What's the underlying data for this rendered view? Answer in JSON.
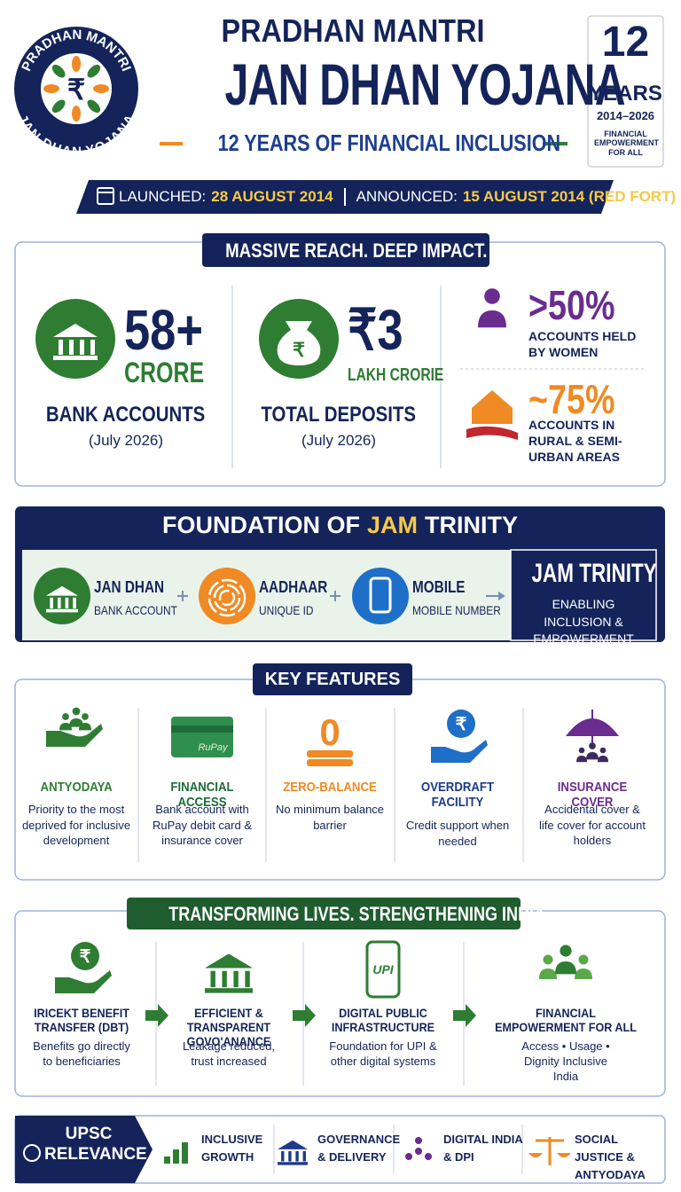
{
  "header": {
    "logo_top": "PRADHAN MANTRI",
    "logo_bottom": "JAN-DHAN YOJANA",
    "logo_symbol": "₹",
    "title_line1": "PRADHAN MANTRI",
    "title_line2": "JAN DHAN YOJANA",
    "tagline": "12 YEARS OF FINANCIAL INCLUSION"
  },
  "badge": {
    "number": "12",
    "label": "YEARS",
    "range": "2014–2026",
    "caption": "FINANCIAL EMPOWERMENT FOR ALL"
  },
  "dates": {
    "launched_label": "LAUNCHED:",
    "launched": "28 AUGUST 2014",
    "announced_label": "ANNOUNCED:",
    "announced": "15 AUGUST 2014 (RED FORT)"
  },
  "reach": {
    "title": "MASSIVE REACH. DEEP IMPACT.",
    "stats": [
      {
        "value": "58+",
        "unit": "CRORE",
        "label": "BANK ACCOUNTS",
        "note": "(July 2026)"
      },
      {
        "icon_text": "₹",
        "value": "₹3",
        "unit": "LAKH CRORIE",
        "label": "TOTAL DEPOSITS",
        "note": "(July 2026)"
      }
    ],
    "shares": [
      {
        "value": ">50%",
        "label": "ACCOUNTS HELD BY WOMEN"
      },
      {
        "value": "~75%",
        "label": "ACCOUNTS IN RURAL & SEMI-URBAN AREAS"
      }
    ]
  },
  "jam": {
    "title_start": "FOUNDATION OF",
    "title_highlight": "JAM",
    "title_end": "TRINITY",
    "items": [
      {
        "name": "JAN DHAN",
        "sub": "BANK ACCOUNT"
      },
      {
        "name": "AADHAAR",
        "sub": "UNIQUE ID"
      },
      {
        "name": "MOBILE",
        "sub": "MOBILE NUMBER"
      }
    ],
    "result": {
      "title": "JAM TRINITY",
      "subtitle": "ENABLING INCLUSION & EMPOWERMENT"
    }
  },
  "features": {
    "title": "KEY FEATURES",
    "items": [
      {
        "title": "ANTYODAYA",
        "desc": "Priority to the most deprived for inclusive development"
      },
      {
        "icon_text": "RuPay",
        "title": "FINANCIAL ACCESS",
        "desc": "Bank account with RuPay debit card & insurance cover"
      },
      {
        "icon_text": "0",
        "title": "ZERO-BALANCE",
        "desc": "No minimum balance barrier"
      },
      {
        "icon_text": "₹",
        "title": "OVERDRAFT FACILITY",
        "desc": "Credit support when needed"
      },
      {
        "title": "INSURANCE COVER",
        "desc": "Accidental cover & life cover for account holders"
      }
    ]
  },
  "impact": {
    "title": "TRANSFORMING LIVES. STRENGTHENING INDIA.",
    "items": [
      {
        "icon_text": "₹",
        "title": "IRICEKT BENEFIT TRANSFER (DBT)",
        "desc": "Benefits go directly to beneficiaries"
      },
      {
        "title": "EFFICIENT & TRANSPARENT GOVO'ANANCE",
        "desc": "Leakage reduced, trust increased"
      },
      {
        "icon_text": "UPI",
        "title": "DIGITAL PUBLIC INFRASTRUCTURE",
        "desc": "Foundation for UPI & other digital systems"
      },
      {
        "title": "FINANCIAL EMPOWERMENT FOR ALL",
        "desc": "Access • Usage • Dignity Inclusive India"
      }
    ]
  },
  "upsc": {
    "title": "UPSC RELEVANCE",
    "items": [
      "INCLUSIVE GROWTH",
      "GOVERNANCE & DELIVERY",
      "DIGITAL INDIA & DPI",
      "SOCIAL JUSTICE & ANTYODAYA"
    ]
  }
}
